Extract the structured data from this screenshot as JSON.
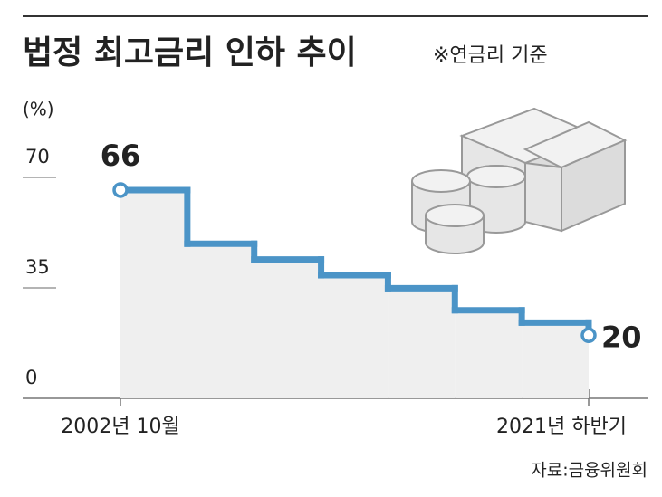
{
  "chart_data": {
    "type": "step",
    "title": "법정 최고금리 인하 추이",
    "subtitle": "※연금리 기준",
    "y_unit": "(%)",
    "source": "자료:금융위원회",
    "categories": [
      "2002년 10월",
      null,
      null,
      null,
      null,
      null,
      null,
      "2021년 하반기"
    ],
    "values": [
      66,
      49,
      44,
      39,
      34.9,
      27.9,
      24,
      20
    ],
    "value_label_indices": [
      0,
      7
    ],
    "color": "#4b94c7",
    "fill": "#efefef",
    "ylim": [
      0,
      70
    ],
    "yticks": [
      0,
      35,
      70
    ]
  }
}
